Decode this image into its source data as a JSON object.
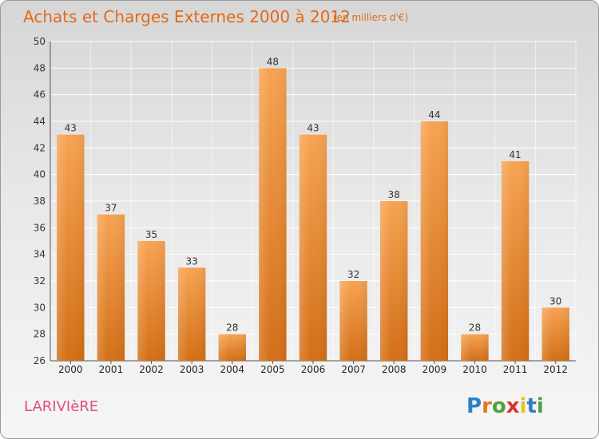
{
  "chart_data": {
    "type": "bar",
    "title": "Achats et Charges Externes 2000 à 2012",
    "subtitle": "(en milliers d'€)",
    "categories": [
      "2000",
      "2001",
      "2002",
      "2003",
      "2004",
      "2005",
      "2006",
      "2007",
      "2008",
      "2009",
      "2010",
      "2011",
      "2012"
    ],
    "values": [
      43,
      37,
      35,
      33,
      28,
      48,
      43,
      32,
      38,
      44,
      28,
      41,
      30
    ],
    "xlabel": "",
    "ylabel": "",
    "ylim": [
      26,
      50
    ],
    "yticks": [
      26,
      28,
      30,
      32,
      34,
      36,
      38,
      40,
      42,
      44,
      46,
      48,
      50
    ],
    "grid": "horizontal",
    "bar_color": "#f0922e"
  },
  "footer": {
    "commune": "LARIVIèRE",
    "brand": "Proxiti"
  }
}
